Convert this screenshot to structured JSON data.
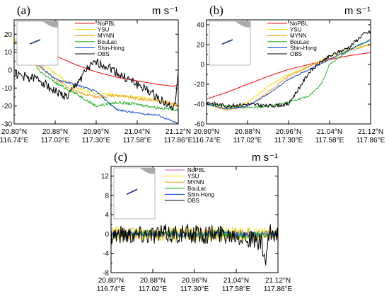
{
  "chart_data": [
    {
      "type": "line",
      "panel_label": "(a)",
      "units": "m s⁻¹",
      "ylim": [
        -30,
        28
      ],
      "yticks": [
        -30,
        -20,
        -10,
        0,
        10,
        20
      ],
      "xlim": [
        0,
        4
      ],
      "x_tick_labels": [
        {
          "lat": "20.80°N",
          "lon": "116.74°E"
        },
        {
          "lat": "20.88°N",
          "lon": "117.02°E"
        },
        {
          "lat": "20.96°N",
          "lon": "117.30°E"
        },
        {
          "lat": "21.04°N",
          "lon": "117.58°E"
        },
        {
          "lat": "21.12°N",
          "lon": "117.86°E"
        }
      ],
      "legend": [
        "NoPBL",
        "YSU",
        "MYNN",
        "BouLac",
        "Shin-Hong",
        "OBS"
      ],
      "series": [
        {
          "name": "NoPBL",
          "color": "#ff0000",
          "noise": 0,
          "x": [
            0,
            0.5,
            1,
            1.5,
            2,
            2.5,
            3,
            3.5,
            3.9,
            4
          ],
          "y": [
            16,
            14,
            8,
            3,
            -1,
            -4,
            -6,
            -8,
            -9,
            -8
          ]
        },
        {
          "name": "YSU",
          "color": "#f2e01a",
          "noise": 0.8,
          "x": [
            0,
            0.3,
            0.6,
            1,
            1.5,
            2,
            2.5,
            3,
            3.5,
            4
          ],
          "y": [
            17,
            15,
            5,
            -2,
            -10,
            -13,
            -14,
            -15,
            -17,
            -20
          ]
        },
        {
          "name": "MYNN",
          "color": "#f4a020",
          "noise": 0.8,
          "x": [
            0,
            0.3,
            0.6,
            1,
            1.5,
            2,
            2.5,
            3,
            3.5,
            4
          ],
          "y": [
            16,
            13,
            2,
            -5,
            -12,
            -15,
            -14,
            -16,
            -17,
            -19
          ]
        },
        {
          "name": "BouLac",
          "color": "#22b422",
          "noise": 0.8,
          "x": [
            0,
            0.3,
            0.6,
            1,
            1.5,
            2,
            2.5,
            3,
            3.5,
            4
          ],
          "y": [
            15,
            11,
            0,
            -7,
            -13,
            -20,
            -18,
            -19,
            -21,
            -22
          ]
        },
        {
          "name": "Shin-Hong",
          "color": "#1a4fd6",
          "noise": 0.6,
          "x": [
            0,
            0.3,
            0.6,
            1,
            1.5,
            2,
            2.5,
            3,
            3.5,
            4
          ],
          "y": [
            12,
            10,
            3,
            -5,
            -8,
            -12,
            -22,
            -24,
            -25,
            -30
          ]
        },
        {
          "name": "OBS",
          "color": "#000000",
          "noise": 2.5,
          "x": [
            0,
            0.3,
            0.6,
            1,
            1.3,
            1.6,
            1.8,
            2,
            2.3,
            2.6,
            3,
            3.3,
            3.6,
            3.9,
            4
          ],
          "y": [
            -2,
            -4,
            -5,
            -12,
            -15,
            -5,
            1,
            4,
            2,
            -3,
            -8,
            -12,
            -17,
            -22,
            -3
          ]
        }
      ]
    },
    {
      "type": "line",
      "panel_label": "(b)",
      "units": "m s⁻¹",
      "ylim": [
        -60,
        45
      ],
      "yticks": [
        -60,
        -40,
        -20,
        0,
        20,
        40
      ],
      "xlim": [
        0,
        4
      ],
      "x_tick_labels": [
        {
          "lat": "20.80°N",
          "lon": "116.74°E"
        },
        {
          "lat": "20.88°N",
          "lon": "117.02°E"
        },
        {
          "lat": "20.96°N",
          "lon": "117.30°E"
        },
        {
          "lat": "21.04°N",
          "lon": "117.58°E"
        },
        {
          "lat": "21.12°N",
          "lon": "117.86°E"
        }
      ],
      "legend": [
        "NoPBL",
        "YSU",
        "MYNN",
        "BouLac",
        "Shin-Hong",
        "OBS"
      ],
      "series": [
        {
          "name": "NoPBL",
          "color": "#ff0000",
          "noise": 0,
          "x": [
            0,
            0.5,
            1,
            1.5,
            2,
            2.5,
            3,
            3.5,
            4
          ],
          "y": [
            -35,
            -28,
            -20,
            -12,
            -5,
            0,
            5,
            9,
            12
          ]
        },
        {
          "name": "YSU",
          "color": "#f2e01a",
          "noise": 0.8,
          "x": [
            0,
            0.5,
            1,
            1.5,
            2,
            2.5,
            3,
            3.5,
            4
          ],
          "y": [
            -40,
            -45,
            -38,
            -22,
            -10,
            -2,
            8,
            16,
            20
          ]
        },
        {
          "name": "MYNN",
          "color": "#f4a020",
          "noise": 0.8,
          "x": [
            0,
            0.5,
            1,
            1.5,
            2,
            2.5,
            3,
            3.5,
            4
          ],
          "y": [
            -40,
            -46,
            -42,
            -28,
            -12,
            -2,
            6,
            14,
            20
          ]
        },
        {
          "name": "BouLac",
          "color": "#22b422",
          "noise": 0.8,
          "x": [
            0,
            0.5,
            1,
            1.5,
            2,
            2.5,
            2.8,
            3,
            3.5,
            4
          ],
          "y": [
            -40,
            -42,
            -44,
            -42,
            -38,
            -32,
            -20,
            0,
            15,
            25
          ]
        },
        {
          "name": "Shin-Hong",
          "color": "#1a4fd6",
          "noise": 0.6,
          "x": [
            0,
            0.5,
            1,
            1.5,
            2,
            2.5,
            3,
            3.5,
            4
          ],
          "y": [
            -40,
            -45,
            -42,
            -30,
            -15,
            -5,
            5,
            15,
            25
          ]
        },
        {
          "name": "OBS",
          "color": "#000000",
          "noise": 2,
          "x": [
            0,
            0.5,
            1,
            1.5,
            2,
            2.5,
            2.8,
            3,
            3.5,
            3.8,
            4
          ],
          "y": [
            -38,
            -42,
            -40,
            -42,
            -40,
            -8,
            3,
            8,
            18,
            30,
            33
          ]
        }
      ]
    },
    {
      "type": "line",
      "panel_label": "(c)",
      "units": "m s⁻¹",
      "ylim": [
        -8,
        14
      ],
      "yticks": [
        -8,
        -4,
        0,
        4,
        8,
        12
      ],
      "xlim": [
        0,
        4
      ],
      "x_tick_labels": [
        {
          "lat": "20.80°N",
          "lon": "116.74°E"
        },
        {
          "lat": "20.88°N",
          "lon": "117.02°E"
        },
        {
          "lat": "20.96°N",
          "lon": "117.30°E"
        },
        {
          "lat": "21.04°N",
          "lon": "117.58°E"
        },
        {
          "lat": "21.12°N",
          "lon": "117.86°E"
        }
      ],
      "legend": [
        "NoPBL",
        "YSU",
        "MYNN",
        "BouLac",
        "Shin-Hong",
        "OBS"
      ],
      "series": [
        {
          "name": "NoPBL",
          "color": "#d050d0",
          "noise": 0.3,
          "x": [
            0,
            4
          ],
          "y": [
            0,
            0
          ]
        },
        {
          "name": "YSU",
          "color": "#f2e01a",
          "noise": 1.5,
          "x": [
            0,
            1,
            2,
            2.5,
            4
          ],
          "y": [
            0,
            0,
            0,
            0,
            0
          ]
        },
        {
          "name": "MYNN",
          "color": "#f4a020",
          "noise": 1.0,
          "x": [
            0,
            4
          ],
          "y": [
            0,
            0
          ]
        },
        {
          "name": "BouLac",
          "color": "#22b422",
          "noise": 0.8,
          "x": [
            0,
            4
          ],
          "y": [
            0,
            0
          ]
        },
        {
          "name": "Shin-Hong",
          "color": "#1a4fd6",
          "noise": 0.6,
          "x": [
            0,
            4
          ],
          "y": [
            0,
            0
          ]
        },
        {
          "name": "OBS",
          "color": "#000000",
          "noise": 2.0,
          "x": [
            0,
            1,
            2,
            3,
            3.6,
            3.7,
            3.8,
            4
          ],
          "y": [
            0,
            0,
            0,
            0,
            -2,
            -6,
            0,
            0
          ]
        }
      ]
    }
  ]
}
